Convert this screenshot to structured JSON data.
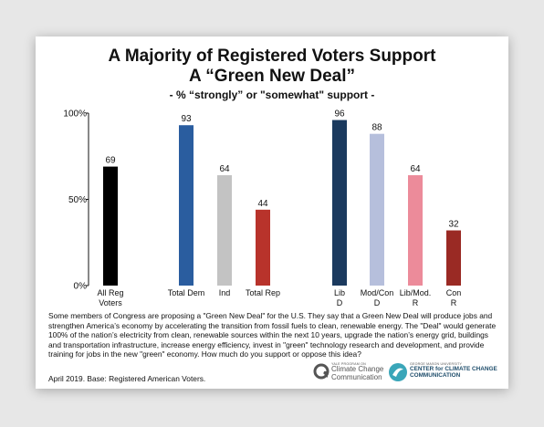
{
  "chart_data": {
    "type": "bar",
    "title_line1": "A Majority of Registered Voters Support",
    "title_line2": "A “Green New Deal”",
    "subtitle": "- % “strongly” or \"somewhat\" support -",
    "xlabel": "",
    "ylabel": "",
    "ylim": [
      0,
      100
    ],
    "yticks": [
      "0%",
      "50%",
      "100%"
    ],
    "grid": false,
    "legend": "none",
    "categories": [
      [
        "All Reg",
        "Voters"
      ],
      [
        "Total Dem"
      ],
      [
        "Ind"
      ],
      [
        "Total Rep"
      ],
      [
        "Lib",
        "D"
      ],
      [
        "Mod/Con",
        "D"
      ],
      [
        "Lib/Mod.",
        "R"
      ],
      [
        "Con",
        "R"
      ]
    ],
    "values": [
      69,
      93,
      64,
      44,
      96,
      88,
      64,
      32
    ],
    "colors": [
      "#000000",
      "#2a5d9f",
      "#c3c3c3",
      "#b8332b",
      "#1b3a5e",
      "#b6bfdc",
      "#ec8b9a",
      "#9a2a24"
    ]
  },
  "note": "Some members of Congress are proposing a \"Green New Deal\" for the U.S. They say that a Green New Deal will produce jobs and strengthen America’s economy by accelerating the transition from fossil fuels to clean, renewable energy. The \"Deal\" would generate 100% of the nation’s electricity from clean, renewable sources within the next 10 years, upgrade the nation’s energy grid, buildings and transportation infrastructure, increase energy efficiency, invest in \"green\" technology research and development, and provide training for jobs in the new \"green\" economy. How much do you support or oppose this idea?",
  "base": "April 2019. Base: Registered American Voters.",
  "logo_yale": {
    "small": "YALE PROGRAM ON",
    "line1": "Climate Change",
    "line2": "Communication",
    "color": "#555555"
  },
  "logo_gmu": {
    "small": "GEORGE MASON UNIVERSITY",
    "line1": "CENTER for CLIMATE CHANGE",
    "line2": "COMMUNICATION",
    "color": "#3aa6b9"
  }
}
